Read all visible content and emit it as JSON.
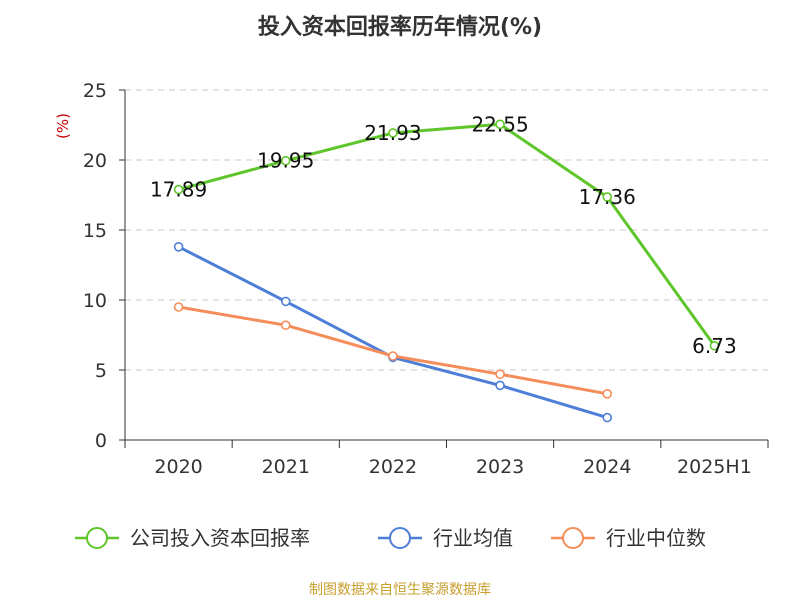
{
  "chart_data": {
    "type": "line",
    "title": "投入资本回报率历年情况(%)",
    "unit_label": "(%)",
    "categories": [
      "2020",
      "2021",
      "2022",
      "2023",
      "2024",
      "2025H1"
    ],
    "ylim": [
      0,
      25
    ],
    "yticks": [
      0,
      5,
      10,
      15,
      20,
      25
    ],
    "grid": true,
    "legend_position": "bottom",
    "series": [
      {
        "name": "公司投入资本回报率",
        "color": "#5ec52a",
        "values": [
          17.89,
          19.95,
          21.93,
          22.55,
          17.36,
          6.73
        ],
        "labels": [
          "17.89",
          "19.95",
          "21.93",
          "22.55",
          "17.36",
          "6.73"
        ]
      },
      {
        "name": "行业均值",
        "color": "#4e7fd8",
        "values": [
          13.8,
          9.9,
          5.9,
          3.9,
          1.6,
          null
        ]
      },
      {
        "name": "行业中位数",
        "color": "#f58d5a",
        "values": [
          9.5,
          8.2,
          6.0,
          4.7,
          3.3,
          null
        ]
      }
    ],
    "source": "制图数据来自恒生聚源数据库"
  }
}
